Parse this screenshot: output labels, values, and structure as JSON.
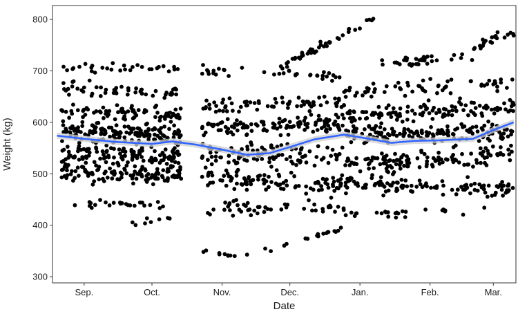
{
  "chart_data": {
    "type": "scatter",
    "title": "",
    "xlabel": "Date",
    "ylabel": "Weight (kg)",
    "grid": false,
    "legend": "none",
    "x_type": "date",
    "xlim": [
      "2018-08-18",
      "2019-03-11"
    ],
    "ylim": [
      288,
      827
    ],
    "x_ticks": [
      {
        "label": "Sep.",
        "date": "2018-09-01"
      },
      {
        "label": "Oct.",
        "date": "2018-10-01"
      },
      {
        "label": "Nov.",
        "date": "2018-11-01"
      },
      {
        "label": "Dec.",
        "date": "2018-12-01"
      },
      {
        "label": "Jan.",
        "date": "2019-01-01"
      },
      {
        "label": "Feb.",
        "date": "2019-02-01"
      },
      {
        "label": "Mar.",
        "date": "2019-03-01"
      }
    ],
    "y_ticks": [
      300,
      400,
      500,
      600,
      700,
      800
    ],
    "point_color": "#000000",
    "smooth_color": "#3366ff",
    "band_color": "#cfcfcf",
    "scatter_bands": [
      {
        "x0": "2018-08-22",
        "x1": "2018-10-14",
        "y0": 440,
        "y1": 440,
        "spread": 8,
        "n": 24
      },
      {
        "x0": "2018-08-22",
        "x1": "2018-10-14",
        "y0": 500,
        "y1": 500,
        "spread": 18,
        "n": 120
      },
      {
        "x0": "2018-08-22",
        "x1": "2018-10-14",
        "y0": 540,
        "y1": 535,
        "spread": 20,
        "n": 120
      },
      {
        "x0": "2018-08-22",
        "x1": "2018-10-14",
        "y0": 585,
        "y1": 575,
        "spread": 20,
        "n": 150
      },
      {
        "x0": "2018-08-22",
        "x1": "2018-10-14",
        "y0": 620,
        "y1": 615,
        "spread": 14,
        "n": 80
      },
      {
        "x0": "2018-08-22",
        "x1": "2018-10-14",
        "y0": 665,
        "y1": 655,
        "spread": 15,
        "n": 50
      },
      {
        "x0": "2018-08-22",
        "x1": "2018-10-14",
        "y0": 705,
        "y1": 705,
        "spread": 8,
        "n": 30
      },
      {
        "x0": "2018-09-20",
        "x1": "2018-10-12",
        "y0": 400,
        "y1": 415,
        "spread": 6,
        "n": 8
      },
      {
        "x0": "2018-10-23",
        "x1": "2018-11-07",
        "y0": 352,
        "y1": 340,
        "spread": 4,
        "n": 9
      },
      {
        "x0": "2018-11-07",
        "x1": "2018-12-25",
        "y0": 335,
        "y1": 395,
        "spread": 5,
        "n": 18
      },
      {
        "x0": "2018-10-23",
        "x1": "2018-12-25",
        "y0": 430,
        "y1": 440,
        "spread": 15,
        "n": 50
      },
      {
        "x0": "2018-10-23",
        "x1": "2018-12-25",
        "y0": 490,
        "y1": 480,
        "spread": 18,
        "n": 100
      },
      {
        "x0": "2018-10-23",
        "x1": "2018-12-25",
        "y0": 540,
        "y1": 535,
        "spread": 20,
        "n": 100
      },
      {
        "x0": "2018-10-23",
        "x1": "2018-12-25",
        "y0": 590,
        "y1": 600,
        "spread": 20,
        "n": 110
      },
      {
        "x0": "2018-10-23",
        "x1": "2018-12-25",
        "y0": 630,
        "y1": 640,
        "spread": 15,
        "n": 70
      },
      {
        "x0": "2018-10-23",
        "x1": "2018-12-25",
        "y0": 700,
        "y1": 690,
        "spread": 10,
        "n": 35
      },
      {
        "x0": "2018-11-25",
        "x1": "2019-01-07",
        "y0": 705,
        "y1": 800,
        "spread": 8,
        "n": 45
      },
      {
        "x0": "2018-12-25",
        "x1": "2019-03-10",
        "y0": 420,
        "y1": 430,
        "spread": 8,
        "n": 25
      },
      {
        "x0": "2018-12-25",
        "x1": "2019-03-10",
        "y0": 480,
        "y1": 470,
        "spread": 15,
        "n": 110
      },
      {
        "x0": "2018-12-25",
        "x1": "2019-03-10",
        "y0": 520,
        "y1": 540,
        "spread": 18,
        "n": 130
      },
      {
        "x0": "2018-12-25",
        "x1": "2019-03-10",
        "y0": 575,
        "y1": 580,
        "spread": 18,
        "n": 150
      },
      {
        "x0": "2018-12-25",
        "x1": "2019-03-10",
        "y0": 610,
        "y1": 630,
        "spread": 16,
        "n": 120
      },
      {
        "x0": "2018-12-25",
        "x1": "2019-03-10",
        "y0": 660,
        "y1": 680,
        "spread": 14,
        "n": 60
      },
      {
        "x0": "2019-01-10",
        "x1": "2019-02-20",
        "y0": 715,
        "y1": 725,
        "spread": 10,
        "n": 35
      },
      {
        "x0": "2019-02-20",
        "x1": "2019-03-10",
        "y0": 745,
        "y1": 775,
        "spread": 12,
        "n": 20
      }
    ],
    "smooth_line": [
      {
        "x": "2018-08-20",
        "y": 574
      },
      {
        "x": "2018-09-01",
        "y": 568
      },
      {
        "x": "2018-09-15",
        "y": 562
      },
      {
        "x": "2018-10-01",
        "y": 558
      },
      {
        "x": "2018-10-10",
        "y": 563
      },
      {
        "x": "2018-10-20",
        "y": 557
      },
      {
        "x": "2018-11-01",
        "y": 547
      },
      {
        "x": "2018-11-12",
        "y": 537
      },
      {
        "x": "2018-11-22",
        "y": 540
      },
      {
        "x": "2018-12-01",
        "y": 552
      },
      {
        "x": "2018-12-12",
        "y": 567
      },
      {
        "x": "2018-12-25",
        "y": 576
      },
      {
        "x": "2019-01-05",
        "y": 568
      },
      {
        "x": "2019-01-15",
        "y": 560
      },
      {
        "x": "2019-01-25",
        "y": 564
      },
      {
        "x": "2019-02-05",
        "y": 565
      },
      {
        "x": "2019-02-20",
        "y": 568
      },
      {
        "x": "2019-03-01",
        "y": 585
      },
      {
        "x": "2019-03-10",
        "y": 600
      }
    ],
    "band_halfwidth": 6
  }
}
